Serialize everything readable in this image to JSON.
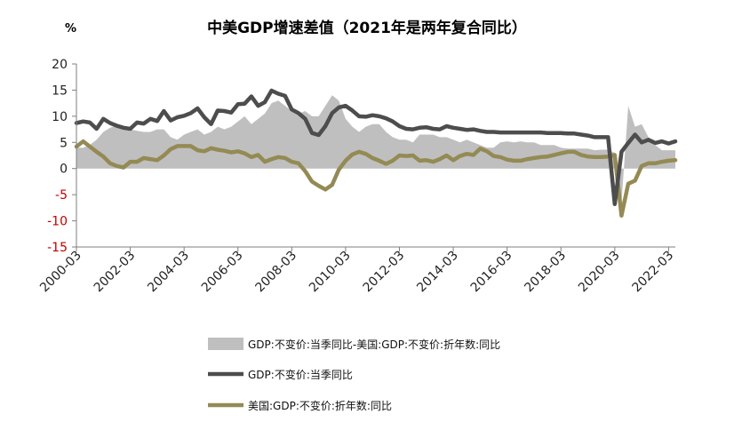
{
  "chart_data": {
    "type": "line",
    "title": "中美GDP增速差值（2021年是两年复合同比）",
    "unit_label": "%",
    "ylim": [
      -15,
      20
    ],
    "y_ticks": [
      20,
      15,
      10,
      5,
      0,
      -5,
      -10,
      -15
    ],
    "x_tick_labels": [
      "2000-03",
      "2002-03",
      "2004-03",
      "2006-03",
      "2008-03",
      "2010-03",
      "2012-03",
      "2014-03",
      "2016-03",
      "2018-03",
      "2020-03",
      "2022-03"
    ],
    "x_range": [
      2000.0,
      2022.25
    ],
    "grid": false,
    "legend_position": "bottom",
    "colors": {
      "area": "#bfbfbf",
      "china": "#4d4d4d",
      "us": "#948a54"
    },
    "series": [
      {
        "key": "diff",
        "name": "GDP:不变价:当季同比-美国:GDP:不变价:折年数:同比",
        "kind": "area",
        "x": [
          2000.0,
          2000.25,
          2000.5,
          2000.75,
          2001.0,
          2001.25,
          2001.5,
          2001.75,
          2002.0,
          2002.25,
          2002.5,
          2002.75,
          2003.0,
          2003.25,
          2003.5,
          2003.75,
          2004.0,
          2004.25,
          2004.5,
          2004.75,
          2005.0,
          2005.25,
          2005.5,
          2005.75,
          2006.0,
          2006.25,
          2006.5,
          2006.75,
          2007.0,
          2007.25,
          2007.5,
          2007.75,
          2008.0,
          2008.25,
          2008.5,
          2008.75,
          2009.0,
          2009.25,
          2009.5,
          2009.75,
          2010.0,
          2010.25,
          2010.5,
          2010.75,
          2011.0,
          2011.25,
          2011.5,
          2011.75,
          2012.0,
          2012.25,
          2012.5,
          2012.75,
          2013.0,
          2013.25,
          2013.5,
          2013.75,
          2014.0,
          2014.25,
          2014.5,
          2014.75,
          2015.0,
          2015.25,
          2015.5,
          2015.75,
          2016.0,
          2016.25,
          2016.5,
          2016.75,
          2017.0,
          2017.25,
          2017.5,
          2017.75,
          2018.0,
          2018.25,
          2018.5,
          2018.75,
          2019.0,
          2019.25,
          2019.5,
          2019.75,
          2020.0,
          2020.25,
          2020.5,
          2020.75,
          2021.0,
          2021.25,
          2021.5,
          2021.75,
          2022.0,
          2022.25
        ],
        "values": [
          4.0,
          4.0,
          4.5,
          5.5,
          7.0,
          7.8,
          8.2,
          8.0,
          7.5,
          7.2,
          7.0,
          7.0,
          7.5,
          7.5,
          6.0,
          5.5,
          6.5,
          7.0,
          7.5,
          6.5,
          7.0,
          8.0,
          7.5,
          8.0,
          9.0,
          10.0,
          8.5,
          9.5,
          10.5,
          12.5,
          13.0,
          12.0,
          11.0,
          10.5,
          11.0,
          10.0,
          10.0,
          12.0,
          14.0,
          13.0,
          9.5,
          8.0,
          7.0,
          8.0,
          8.5,
          8.5,
          7.0,
          6.0,
          5.5,
          5.5,
          5.0,
          6.5,
          6.5,
          6.5,
          6.0,
          6.0,
          5.5,
          5.0,
          5.5,
          5.0,
          4.5,
          4.0,
          4.0,
          5.0,
          5.2,
          5.0,
          5.2,
          5.0,
          5.0,
          4.5,
          4.5,
          4.5,
          4.0,
          3.8,
          3.8,
          3.8,
          3.8,
          3.5,
          3.6,
          3.6,
          3.0,
          -6.5,
          12.0,
          8.0,
          8.5,
          6.0,
          4.5,
          3.5,
          3.5,
          3.5
        ]
      },
      {
        "key": "china",
        "name": "GDP:不变价:当季同比",
        "kind": "line",
        "x": [
          2000.0,
          2000.25,
          2000.5,
          2000.75,
          2001.0,
          2001.25,
          2001.5,
          2001.75,
          2002.0,
          2002.25,
          2002.5,
          2002.75,
          2003.0,
          2003.25,
          2003.5,
          2003.75,
          2004.0,
          2004.25,
          2004.5,
          2004.75,
          2005.0,
          2005.25,
          2005.5,
          2005.75,
          2006.0,
          2006.25,
          2006.5,
          2006.75,
          2007.0,
          2007.25,
          2007.5,
          2007.75,
          2008.0,
          2008.25,
          2008.5,
          2008.75,
          2009.0,
          2009.25,
          2009.5,
          2009.75,
          2010.0,
          2010.25,
          2010.5,
          2010.75,
          2011.0,
          2011.25,
          2011.5,
          2011.75,
          2012.0,
          2012.25,
          2012.5,
          2012.75,
          2013.0,
          2013.25,
          2013.5,
          2013.75,
          2014.0,
          2014.25,
          2014.5,
          2014.75,
          2015.0,
          2015.25,
          2015.5,
          2015.75,
          2016.0,
          2016.25,
          2016.5,
          2016.75,
          2017.0,
          2017.25,
          2017.5,
          2017.75,
          2018.0,
          2018.25,
          2018.5,
          2018.75,
          2019.0,
          2019.25,
          2019.5,
          2019.75,
          2020.0,
          2020.25,
          2020.5,
          2020.75,
          2021.0,
          2021.25,
          2021.5,
          2021.75,
          2022.0,
          2022.25
        ],
        "values": [
          8.7,
          9.0,
          8.8,
          7.6,
          9.5,
          8.7,
          8.2,
          7.8,
          7.6,
          8.8,
          8.6,
          9.5,
          9.1,
          11.0,
          9.2,
          9.8,
          10.1,
          10.6,
          11.5,
          9.8,
          8.5,
          11.1,
          11.0,
          10.7,
          12.3,
          12.4,
          13.8,
          12.0,
          12.7,
          14.9,
          14.3,
          13.9,
          11.3,
          10.6,
          9.5,
          6.8,
          6.4,
          8.1,
          10.6,
          11.7,
          12.0,
          11.1,
          10.0,
          9.9,
          10.2,
          10.0,
          9.6,
          9.0,
          8.1,
          7.6,
          7.5,
          7.8,
          7.9,
          7.6,
          7.5,
          8.1,
          7.8,
          7.6,
          7.4,
          7.5,
          7.2,
          7.0,
          7.0,
          6.9,
          6.9,
          6.9,
          6.9,
          6.9,
          6.9,
          6.9,
          6.8,
          6.8,
          6.8,
          6.7,
          6.7,
          6.5,
          6.3,
          6.0,
          6.0,
          6.0,
          -6.8,
          3.2,
          4.9,
          6.5,
          5.0,
          5.5,
          4.9,
          5.2,
          4.8,
          5.2
        ]
      },
      {
        "key": "us",
        "name": "美国:GDP:不变价:折年数:同比",
        "kind": "line",
        "x": [
          2000.0,
          2000.25,
          2000.5,
          2000.75,
          2001.0,
          2001.25,
          2001.5,
          2001.75,
          2002.0,
          2002.25,
          2002.5,
          2002.75,
          2003.0,
          2003.25,
          2003.5,
          2003.75,
          2004.0,
          2004.25,
          2004.5,
          2004.75,
          2005.0,
          2005.25,
          2005.5,
          2005.75,
          2006.0,
          2006.25,
          2006.5,
          2006.75,
          2007.0,
          2007.25,
          2007.5,
          2007.75,
          2008.0,
          2008.25,
          2008.5,
          2008.75,
          2009.0,
          2009.25,
          2009.5,
          2009.75,
          2010.0,
          2010.25,
          2010.5,
          2010.75,
          2011.0,
          2011.25,
          2011.5,
          2011.75,
          2012.0,
          2012.25,
          2012.5,
          2012.75,
          2013.0,
          2013.25,
          2013.5,
          2013.75,
          2014.0,
          2014.25,
          2014.5,
          2014.75,
          2015.0,
          2015.25,
          2015.5,
          2015.75,
          2016.0,
          2016.25,
          2016.5,
          2016.75,
          2017.0,
          2017.25,
          2017.5,
          2017.75,
          2018.0,
          2018.25,
          2018.5,
          2018.75,
          2019.0,
          2019.25,
          2019.5,
          2019.75,
          2020.0,
          2020.25,
          2020.5,
          2020.75,
          2021.0,
          2021.25,
          2021.5,
          2021.75,
          2022.0,
          2022.25
        ],
        "values": [
          4.2,
          5.2,
          4.2,
          3.2,
          2.3,
          1.0,
          0.5,
          0.2,
          1.3,
          1.3,
          2.0,
          1.8,
          1.6,
          2.5,
          3.7,
          4.3,
          4.3,
          4.3,
          3.5,
          3.3,
          3.9,
          3.6,
          3.4,
          3.1,
          3.3,
          2.9,
          2.2,
          2.6,
          1.3,
          1.8,
          2.2,
          2.0,
          1.3,
          1.0,
          -0.5,
          -2.5,
          -3.3,
          -4.0,
          -3.1,
          -0.2,
          1.5,
          2.7,
          3.2,
          2.8,
          2.0,
          1.5,
          0.9,
          1.5,
          2.5,
          2.4,
          2.5,
          1.5,
          1.6,
          1.3,
          1.8,
          2.5,
          1.6,
          2.4,
          2.8,
          2.6,
          3.8,
          3.3,
          2.4,
          2.2,
          1.7,
          1.5,
          1.5,
          1.8,
          2.0,
          2.2,
          2.3,
          2.6,
          2.9,
          3.2,
          3.2,
          2.6,
          2.3,
          2.2,
          2.2,
          2.3,
          2.6,
          -9.0,
          -2.9,
          -2.3,
          0.5,
          1.0,
          1.0,
          1.3,
          1.5,
          1.6
        ]
      }
    ]
  }
}
